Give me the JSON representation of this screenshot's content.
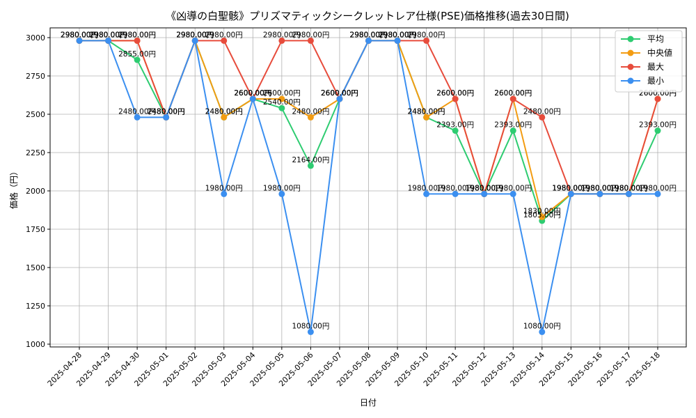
{
  "chart_data": {
    "type": "line",
    "title": "《凶導の白聖骸》プリズマティックシークレットレア仕様(PSE)価格推移(過去30日間)",
    "xlabel": "日付",
    "ylabel": "価格（円）",
    "ylim": [
      1000,
      3000
    ],
    "yticks": [
      1000,
      1250,
      1500,
      1750,
      2000,
      2250,
      2500,
      2750,
      3000
    ],
    "grid": true,
    "legend_position": "top-right",
    "value_suffix": "円",
    "categories": [
      "2025-04-28",
      "2025-04-29",
      "2025-04-30",
      "2025-05-01",
      "2025-05-02",
      "2025-05-03",
      "2025-05-04",
      "2025-05-05",
      "2025-05-06",
      "2025-05-07",
      "2025-05-08",
      "2025-05-09",
      "2025-05-10",
      "2025-05-11",
      "2025-05-12",
      "2025-05-13",
      "2025-05-14",
      "2025-05-15",
      "2025-05-16",
      "2025-05-17",
      "2025-05-18"
    ],
    "series": [
      {
        "name": "平均",
        "color": "#2ecc71",
        "values": [
          2980,
          2980,
          2855,
          2480,
          2980,
          2480,
          2600,
          2540,
          2164,
          2600,
          2980,
          2980,
          2480,
          2393,
          1980,
          2393,
          1805,
          1980,
          1980,
          1980,
          2393
        ]
      },
      {
        "name": "中央値",
        "color": "#f39c12",
        "values": [
          2980,
          2980,
          2980,
          2480,
          2980,
          2480,
          2600,
          2600,
          2480,
          2600,
          2980,
          2980,
          2480,
          2600,
          1980,
          2600,
          1830,
          1980,
          1980,
          1980,
          2600
        ]
      },
      {
        "name": "最大",
        "color": "#e74c3c",
        "values": [
          2980,
          2980,
          2980,
          2480,
          2980,
          2980,
          2600,
          2980,
          2980,
          2600,
          2980,
          2980,
          2980,
          2600,
          1980,
          2600,
          2480,
          1980,
          1980,
          1980,
          2600
        ]
      },
      {
        "name": "最小",
        "color": "#3b8ff0",
        "values": [
          2980,
          2980,
          2480,
          2480,
          2980,
          1980,
          2600,
          1980,
          1080,
          2600,
          2980,
          2980,
          1980,
          1980,
          1980,
          1980,
          1080,
          1980,
          1980,
          1980,
          1980
        ]
      }
    ]
  }
}
